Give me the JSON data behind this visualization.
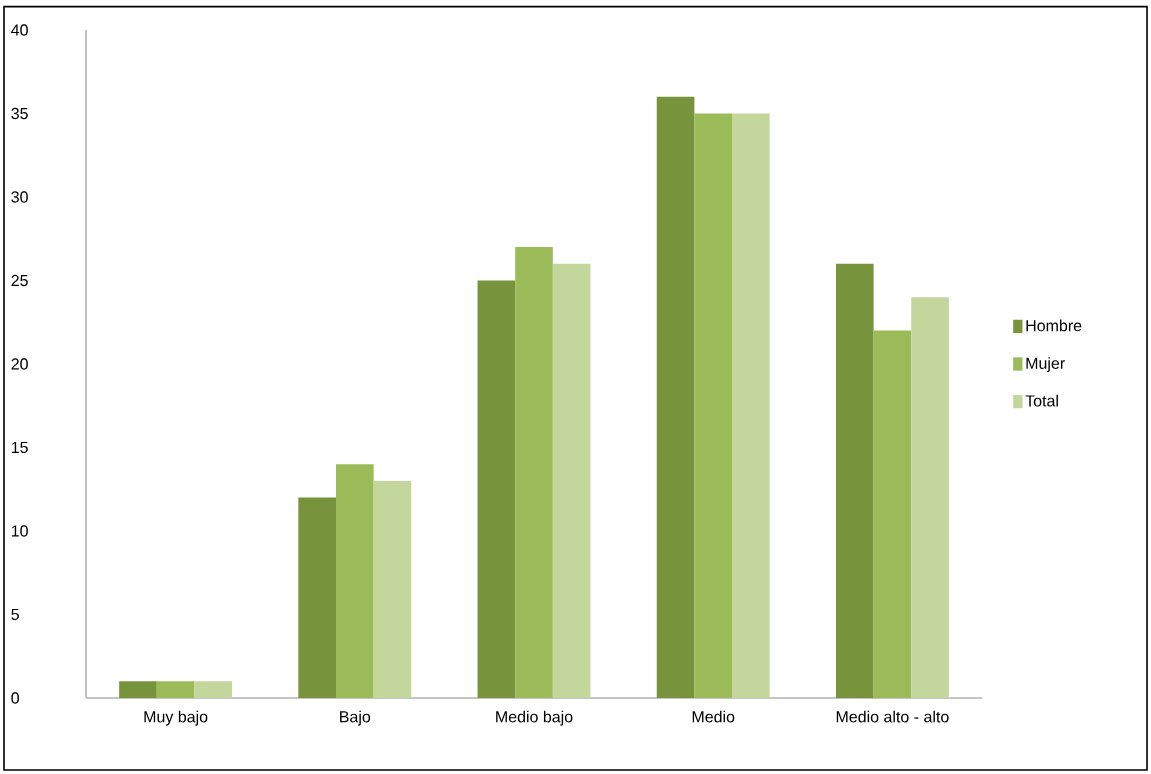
{
  "chart_data": {
    "type": "bar",
    "categories": [
      "Muy bajo",
      "Bajo",
      "Medio bajo",
      "Medio",
      "Medio alto - alto"
    ],
    "series": [
      {
        "name": "Hombre",
        "color": "#77933c",
        "values": [
          1,
          12,
          25,
          36,
          26
        ]
      },
      {
        "name": "Mujer",
        "color": "#9bbb59",
        "values": [
          1,
          14,
          27,
          35,
          22
        ]
      },
      {
        "name": "Total",
        "color": "#c3d69b",
        "values": [
          1,
          13,
          26,
          35,
          24
        ]
      }
    ],
    "ylim": [
      0,
      40
    ],
    "yticks": [
      0,
      5,
      10,
      15,
      20,
      25,
      30,
      35,
      40
    ],
    "grid": false,
    "legend": "right"
  }
}
